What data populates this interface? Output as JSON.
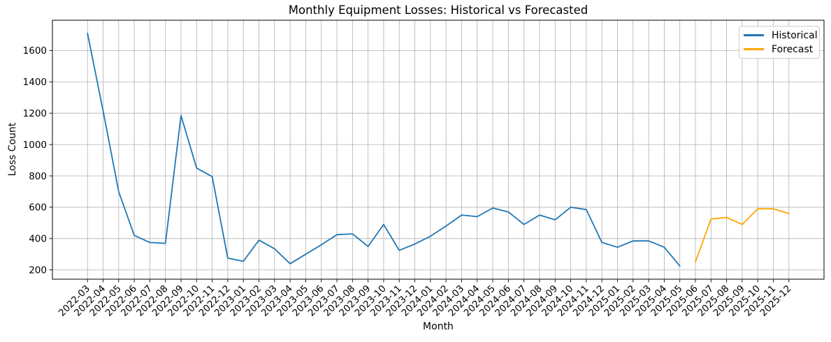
{
  "chart_data": {
    "type": "line",
    "title": "Monthly Equipment Losses: Historical vs Forecasted",
    "xlabel": "Month",
    "ylabel": "Loss Count",
    "grid": true,
    "legend_position": "upper right",
    "categories": [
      "2022-03",
      "2022-04",
      "2022-05",
      "2022-06",
      "2022-07",
      "2022-08",
      "2022-09",
      "2022-10",
      "2022-11",
      "2022-12",
      "2023-01",
      "2023-02",
      "2023-03",
      "2023-04",
      "2023-05",
      "2023-06",
      "2023-07",
      "2023-08",
      "2023-09",
      "2023-10",
      "2023-11",
      "2023-12",
      "2024-01",
      "2024-02",
      "2024-03",
      "2024-04",
      "2024-05",
      "2024-06",
      "2024-07",
      "2024-08",
      "2024-09",
      "2024-10",
      "2024-11",
      "2024-12",
      "2025-01",
      "2025-02",
      "2025-03",
      "2025-04",
      "2025-05",
      "2025-06",
      "2025-07",
      "2025-08",
      "2025-09",
      "2025-10",
      "2025-11",
      "2025-12"
    ],
    "series": [
      {
        "name": "Historical",
        "color": "#1f77b4",
        "start_index": 0,
        "values": [
          1710,
          1215,
          700,
          420,
          375,
          370,
          1185,
          850,
          795,
          275,
          255,
          390,
          335,
          240,
          300,
          360,
          425,
          430,
          350,
          490,
          325,
          365,
          415,
          480,
          550,
          540,
          595,
          570,
          490,
          550,
          520,
          600,
          585,
          375,
          345,
          385,
          385,
          345,
          225
        ]
      },
      {
        "name": "Forecast",
        "color": "#ffa500",
        "start_index": 39,
        "values": [
          250,
          525,
          535,
          490,
          590,
          590,
          560
        ]
      }
    ],
    "yticks": [
      200,
      400,
      600,
      800,
      1000,
      1200,
      1400,
      1600
    ],
    "ylim": [
      141,
      1793
    ]
  },
  "colors": {
    "grid": "#b0b0b0",
    "axis": "#000000",
    "legend_border": "#cccccc",
    "background": "#ffffff"
  }
}
